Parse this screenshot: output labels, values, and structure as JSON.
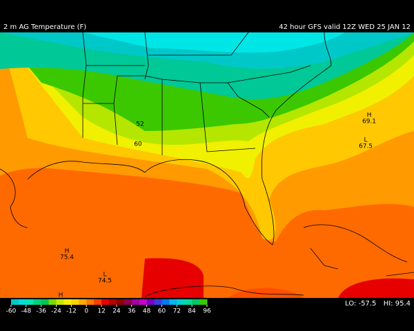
{
  "header": {
    "left": "2 m AG Temperature (F)",
    "right": "42 hour GFS valid 12Z WED 25 JAN 12"
  },
  "labels": [
    "H",
    "69.1",
    "L",
    "67.5",
    "52",
    "60",
    "H",
    "75.4",
    "L",
    "74.5",
    "H"
  ],
  "colorbar": {
    "ticks": [
      -60,
      -48,
      -36,
      -24,
      -12,
      0,
      12,
      24,
      36,
      48,
      60,
      72,
      84,
      96
    ],
    "colors": [
      "#00c8c8",
      "#00dcdc",
      "#00e6b4",
      "#00d278",
      "#00c850",
      "#78dc00",
      "#c8e600",
      "#f0f000",
      "#ffd200",
      "#ffaa00",
      "#ff7800",
      "#ff3c00",
      "#e60000",
      "#b40000",
      "#8c0000",
      "#8c0050",
      "#a000a0",
      "#c800c8",
      "#7800c8",
      "#3c3cdc",
      "#0078f0",
      "#00b4f0",
      "#00d2d2",
      "#00dc96",
      "#00c864",
      "#3cc800"
    ]
  },
  "stats": {
    "lo": "LO: -57.5",
    "hi": "HI: 95.4"
  }
}
